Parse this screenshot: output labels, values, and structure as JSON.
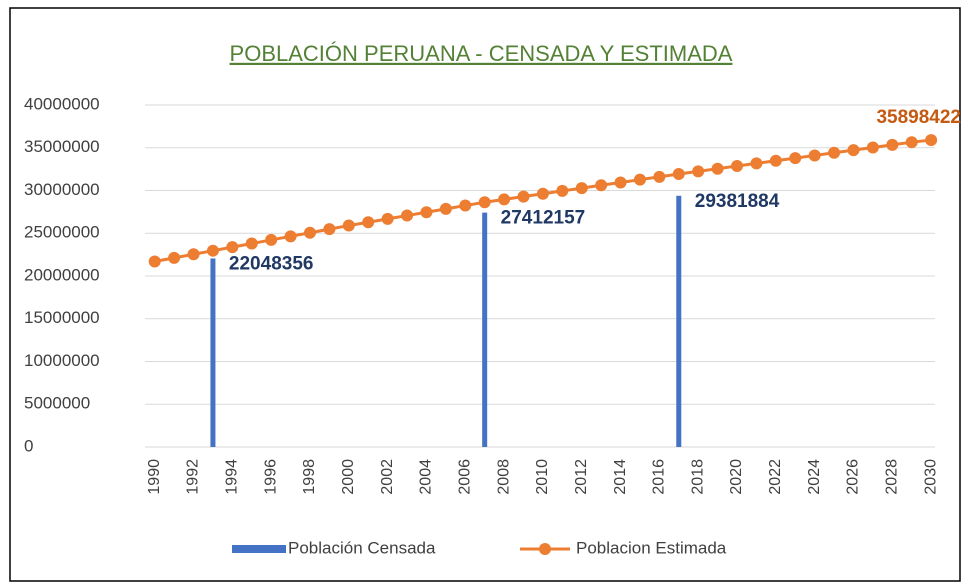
{
  "chart_data": {
    "type": "combo",
    "title": "POBLACIÓN PERUANA - CENSADA Y ESTIMADA",
    "xlim": [
      1989.5,
      2030.2
    ],
    "xticks": [
      1990,
      1992,
      1994,
      1996,
      1998,
      2000,
      2002,
      2004,
      2006,
      2008,
      2010,
      2012,
      2014,
      2016,
      2018,
      2020,
      2022,
      2024,
      2026,
      2028,
      2030
    ],
    "ylim": [
      0,
      40000000
    ],
    "yticks": [
      0,
      5000000,
      10000000,
      15000000,
      20000000,
      25000000,
      30000000,
      35000000,
      40000000
    ],
    "grid": true,
    "legend": "bottom",
    "series": [
      {
        "name": "Población Censada",
        "type": "bar",
        "color": "#4472c4",
        "x": [
          1993,
          2007,
          2017
        ],
        "values": [
          22048356,
          27412157,
          29381884
        ]
      },
      {
        "name": "Poblacion Estimada",
        "type": "line",
        "color": "#ed7d31",
        "x": [
          1990,
          1991,
          1992,
          1993,
          1994,
          1995,
          1996,
          1997,
          1998,
          1999,
          2000,
          2001,
          2002,
          2003,
          2004,
          2005,
          2006,
          2007,
          2008,
          2009,
          2010,
          2011,
          2012,
          2013,
          2014,
          2015,
          2016,
          2017,
          2018,
          2019,
          2020,
          2021,
          2022,
          2023,
          2024,
          2025,
          2026,
          2027,
          2028,
          2029,
          2030
        ],
        "values": [
          21700000,
          22120000,
          22540000,
          22960000,
          23380000,
          23800000,
          24220000,
          24640000,
          25060000,
          25480000,
          25900000,
          26290000,
          26680000,
          27070000,
          27460000,
          27850000,
          28240000,
          28630000,
          28960000,
          29290000,
          29620000,
          29950000,
          30280000,
          30610000,
          30940000,
          31270000,
          31600000,
          31930000,
          32240000,
          32550000,
          32860000,
          33170000,
          33480000,
          33790000,
          34100000,
          34410000,
          34720000,
          35030000,
          35340000,
          35650000,
          35898422
        ]
      }
    ]
  }
}
